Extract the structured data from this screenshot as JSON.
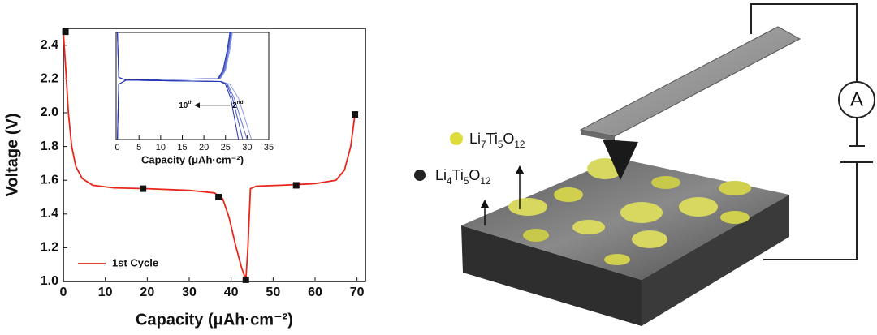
{
  "chart_data": [
    {
      "type": "line",
      "xlabel": "Capacity (μAh·cm⁻²)",
      "ylabel": "Voltage (V)",
      "xlim": [
        0,
        72
      ],
      "ylim": [
        1.0,
        2.5
      ],
      "xticks": [
        0,
        10,
        20,
        30,
        40,
        50,
        60,
        70
      ],
      "yticks": [
        {
          "value": 1,
          "label": "1.0"
        },
        1.2,
        1.4,
        1.6,
        1.8,
        {
          "value": 2,
          "label": "2.0"
        },
        2.2,
        2.4
      ],
      "legend": "lower left",
      "series": [
        {
          "name": "1st Cycle",
          "color": "#e8261c",
          "x": [
            0,
            0.6,
            1.2,
            2,
            3,
            4.5,
            7,
            12,
            20,
            30,
            36,
            38,
            39.5,
            41,
            42.5,
            43.5,
            44,
            44.6,
            46,
            52,
            60,
            65,
            67,
            68.5,
            69.5
          ],
          "values": [
            2.48,
            2.25,
            2.0,
            1.8,
            1.68,
            1.61,
            1.57,
            1.555,
            1.55,
            1.54,
            1.525,
            1.49,
            1.38,
            1.22,
            1.08,
            1.01,
            1.2,
            1.55,
            1.565,
            1.57,
            1.58,
            1.6,
            1.66,
            1.8,
            1.99
          ]
        },
        {
          "color": "#111111",
          "marker": "square",
          "line": false,
          "x": [
            0.5,
            19,
            37,
            43.5,
            55.5,
            69.5
          ],
          "values": [
            2.48,
            1.55,
            1.5,
            1.01,
            1.57,
            1.99
          ]
        }
      ]
    },
    {
      "type": "line",
      "xlabel": "Capacity (μAh·cm⁻²)",
      "xlim": [
        -0.3,
        35
      ],
      "ylim": [
        1.0,
        2.55
      ],
      "xticks": [
        0,
        5,
        10,
        15,
        20,
        25,
        30,
        35
      ],
      "annotation": {
        "left": [
          "10",
          "th"
        ],
        "right": [
          "2",
          "nd"
        ]
      },
      "series": [
        {
          "color": "#8a9be6",
          "x": [
            0,
            0.3,
            2,
            12,
            24,
            26,
            28,
            30,
            31,
            null,
            0,
            0.3,
            2,
            12,
            23.8,
            25,
            26,
            26.6
          ],
          "values": [
            2.55,
            1.9,
            1.86,
            1.85,
            1.84,
            1.8,
            1.6,
            1.2,
            1.0,
            null,
            1.0,
            1.8,
            1.86,
            1.87,
            1.88,
            2.0,
            2.3,
            2.55
          ]
        },
        {
          "color": "#6474d8",
          "x": [
            0,
            0.3,
            2,
            12,
            24,
            25.5,
            27,
            29,
            30,
            null,
            0,
            0.3,
            2,
            12,
            23.6,
            24.8,
            25.8,
            26.4
          ],
          "values": [
            2.55,
            1.9,
            1.86,
            1.85,
            1.84,
            1.8,
            1.6,
            1.2,
            1.0,
            null,
            1.0,
            1.8,
            1.86,
            1.87,
            1.88,
            2.0,
            2.3,
            2.55
          ]
        },
        {
          "color": "#3e4fc8",
          "x": [
            0,
            0.3,
            2,
            12,
            24,
            25.3,
            26.6,
            28.2,
            29,
            null,
            0,
            0.3,
            2,
            12,
            23.4,
            24.6,
            25.6,
            26.2
          ],
          "values": [
            2.55,
            1.9,
            1.86,
            1.85,
            1.84,
            1.8,
            1.6,
            1.2,
            1.0,
            null,
            1.0,
            1.8,
            1.86,
            1.87,
            1.88,
            2.0,
            2.3,
            2.55
          ]
        },
        {
          "color": "#2233b0",
          "x": [
            0,
            0.3,
            2,
            12,
            23.8,
            25,
            26.2,
            27.4,
            28,
            null,
            0,
            0.3,
            2,
            12,
            23.2,
            24.4,
            25.4,
            26
          ],
          "values": [
            2.55,
            1.9,
            1.86,
            1.85,
            1.84,
            1.8,
            1.6,
            1.2,
            1.0,
            null,
            1.0,
            1.8,
            1.86,
            1.87,
            1.88,
            2.0,
            2.3,
            2.55
          ]
        }
      ]
    }
  ],
  "diagram": {
    "product": {
      "label": [
        "Li",
        "7",
        "Ti",
        "5",
        "O",
        "12"
      ],
      "color": "#dcdc3c"
    },
    "reactant": {
      "label": [
        "Li",
        "4",
        "Ti",
        "5",
        "O",
        "12"
      ],
      "color": "#222222"
    },
    "meter": "A"
  }
}
